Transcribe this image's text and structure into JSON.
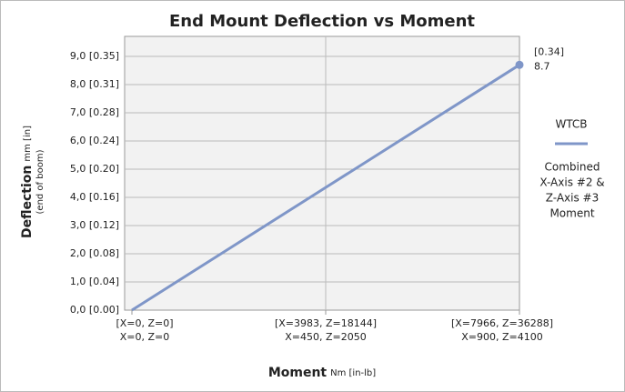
{
  "chart_data": {
    "type": "line",
    "title": "End Mount Deflection vs Moment",
    "x_label": {
      "main": "Moment",
      "units": "Nm [in-lb]"
    },
    "y_label": {
      "main": "Deflection",
      "units": "mm [in]",
      "note": "(end of boom)"
    },
    "categories": [
      [
        "[X=0, Z=0]",
        "X=0, Z=0"
      ],
      [
        "[X=3983, Z=18144]",
        "X=450, Z=2050"
      ],
      [
        "[X=7966, Z=36288]",
        "X=900, Z=4100"
      ]
    ],
    "series": [
      {
        "name": "WTCB",
        "color": "#7f96c8",
        "values": [
          0,
          4.35,
          8.7
        ]
      }
    ],
    "legend_note": [
      "Combined",
      "X-Axis #2 &",
      "Z-Axis #3",
      "Moment"
    ],
    "annotation": "[0.34]",
    "ylim": [
      0,
      9
    ],
    "yticks": [
      {
        "value": 0,
        "label": "0,0 [0.00]"
      },
      {
        "value": 1,
        "label": "1,0 [0.04]"
      },
      {
        "value": 2,
        "label": "2,0 [0.08]"
      },
      {
        "value": 3,
        "label": "3,0 [0.12]"
      },
      {
        "value": 4,
        "label": "4,0 [0.16]"
      },
      {
        "value": 5,
        "label": "5,0 [0.20]"
      },
      {
        "value": 6,
        "label": "6,0 [0.24]"
      },
      {
        "value": 7,
        "label": "7,0 [0.28]"
      },
      {
        "value": 8,
        "label": "8,0 [0.31]"
      },
      {
        "value": 9,
        "label": "9,0 [0.35]"
      }
    ],
    "grid": true
  }
}
